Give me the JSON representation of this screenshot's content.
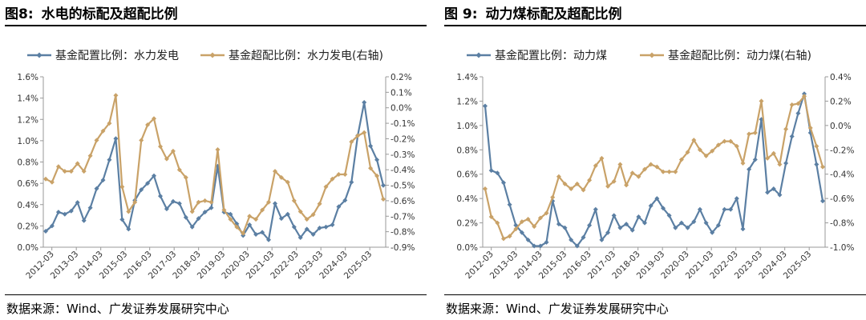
{
  "panels": [
    {
      "figure_label": "图8:",
      "figure_title": "水电的标配及超配比例",
      "source": "数据来源：Wind、广发证券发展研究中心"
    },
    {
      "figure_label": "图 9:",
      "figure_title": "动力煤标配及超配比例",
      "source": "数据来源：Wind、广发证券发展研究中心"
    }
  ],
  "colors": {
    "series_standard": "#5B7FA3",
    "series_over": "#C9A268",
    "axis": "#999999"
  },
  "chart_data": [
    {
      "type": "line",
      "title": "",
      "x_ticks": [
        "2012-03",
        "2013-03",
        "2014-03",
        "2015-03",
        "2016-03",
        "2017-03",
        "2018-03",
        "2019-03",
        "2020-03",
        "2021-03",
        "2022-03",
        "2023-03",
        "2024-03",
        "2025-03"
      ],
      "y_left": {
        "min": 0.0,
        "max": 1.6,
        "step": 0.2,
        "ticks": [
          "0.0%",
          "0.2%",
          "0.4%",
          "0.6%",
          "0.8%",
          "1.0%",
          "1.2%",
          "1.4%",
          "1.6%"
        ]
      },
      "y_right": {
        "min": -0.9,
        "max": 0.2,
        "step": 0.1,
        "ticks": [
          "-0.9%",
          "-0.8%",
          "-0.7%",
          "-0.6%",
          "-0.5%",
          "-0.4%",
          "-0.3%",
          "-0.2%",
          "-0.1%",
          "0.0%",
          "0.1%",
          "0.2%"
        ]
      },
      "legend_position": "top",
      "series": [
        {
          "name": "基金配置比例：水力发电",
          "axis": "left",
          "values": [
            0.15,
            0.2,
            0.33,
            0.31,
            0.34,
            0.42,
            0.25,
            0.37,
            0.55,
            0.63,
            0.82,
            1.02,
            0.26,
            0.17,
            0.44,
            0.54,
            0.6,
            0.67,
            0.48,
            0.36,
            0.43,
            0.41,
            0.28,
            0.19,
            0.27,
            0.33,
            0.37,
            0.76,
            0.33,
            0.31,
            0.22,
            0.11,
            0.21,
            0.12,
            0.14,
            0.07,
            0.41,
            0.27,
            0.31,
            0.19,
            0.09,
            0.17,
            0.12,
            0.18,
            0.19,
            0.21,
            0.38,
            0.44,
            0.61,
            1.05,
            1.36,
            0.95,
            0.82,
            0.58
          ]
        },
        {
          "name": "基金超配比例：水力发电(右轴)",
          "axis": "right",
          "values": [
            -0.46,
            -0.48,
            -0.38,
            -0.41,
            -0.41,
            -0.36,
            -0.41,
            -0.31,
            -0.21,
            -0.15,
            -0.1,
            0.08,
            -0.51,
            -0.67,
            -0.61,
            -0.21,
            -0.11,
            -0.07,
            -0.25,
            -0.33,
            -0.28,
            -0.4,
            -0.45,
            -0.67,
            -0.61,
            -0.6,
            -0.61,
            -0.27,
            -0.66,
            -0.72,
            -0.77,
            -0.81,
            -0.7,
            -0.72,
            -0.66,
            -0.61,
            -0.41,
            -0.45,
            -0.48,
            -0.6,
            -0.67,
            -0.72,
            -0.69,
            -0.62,
            -0.51,
            -0.46,
            -0.43,
            -0.43,
            -0.22,
            -0.18,
            -0.16,
            -0.39,
            -0.44,
            -0.59
          ]
        }
      ]
    },
    {
      "type": "line",
      "title": "",
      "x_ticks": [
        "2012-03",
        "2013-03",
        "2014-03",
        "2015-03",
        "2016-03",
        "2017-03",
        "2018-03",
        "2019-03",
        "2020-03",
        "2021-03",
        "2022-03",
        "2023-03",
        "2024-03",
        "2025-03"
      ],
      "y_left": {
        "min": 0.0,
        "max": 1.4,
        "step": 0.2,
        "ticks": [
          "0.0%",
          "0.2%",
          "0.4%",
          "0.6%",
          "0.8%",
          "1.0%",
          "1.2%",
          "1.4%"
        ]
      },
      "y_right": {
        "min": -1.0,
        "max": 0.4,
        "step": 0.2,
        "ticks": [
          "-1.0%",
          "-0.8%",
          "-0.6%",
          "-0.4%",
          "-0.2%",
          "0.0%",
          "0.2%",
          "0.4%"
        ]
      },
      "legend_position": "top",
      "series": [
        {
          "name": "基金配置比例：动力煤",
          "axis": "left",
          "values": [
            1.16,
            0.63,
            0.61,
            0.53,
            0.35,
            0.18,
            0.12,
            0.06,
            0.01,
            0.01,
            0.04,
            0.38,
            0.19,
            0.16,
            0.06,
            0.01,
            0.08,
            0.18,
            0.31,
            0.06,
            0.12,
            0.26,
            0.16,
            0.19,
            0.14,
            0.25,
            0.2,
            0.34,
            0.4,
            0.32,
            0.26,
            0.16,
            0.2,
            0.16,
            0.21,
            0.31,
            0.2,
            0.12,
            0.18,
            0.31,
            0.31,
            0.4,
            0.15,
            0.64,
            0.72,
            1.05,
            0.45,
            0.48,
            0.43,
            0.69,
            0.91,
            1.1,
            1.26,
            0.94,
            0.68,
            0.38
          ]
        },
        {
          "name": "基金超配比例：动力煤(右轴)",
          "axis": "right",
          "values": [
            -0.52,
            -0.75,
            -0.8,
            -0.93,
            -0.91,
            -0.85,
            -0.79,
            -0.77,
            -0.83,
            -0.76,
            -0.72,
            -0.59,
            -0.42,
            -0.48,
            -0.52,
            -0.48,
            -0.53,
            -0.45,
            -0.33,
            -0.27,
            -0.5,
            -0.46,
            -0.32,
            -0.49,
            -0.39,
            -0.42,
            -0.36,
            -0.32,
            -0.34,
            -0.38,
            -0.38,
            -0.38,
            -0.28,
            -0.22,
            -0.12,
            -0.2,
            -0.25,
            -0.21,
            -0.16,
            -0.13,
            -0.13,
            -0.17,
            -0.31,
            -0.07,
            -0.06,
            0.2,
            -0.27,
            -0.23,
            -0.32,
            -0.03,
            0.17,
            0.18,
            0.24,
            -0.02,
            -0.17,
            -0.34
          ]
        }
      ]
    }
  ]
}
